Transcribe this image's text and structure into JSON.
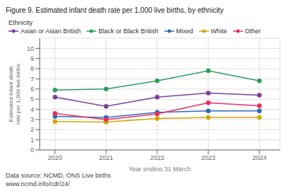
{
  "chart_data": {
    "type": "line",
    "title": "Figure 9. Estimated infant death rate per 1,000 live births, by ethnicity",
    "xlabel": "Year ending 31 March",
    "ylabel": "Estimated infant death rate per 1,000 live births",
    "legend_title": "Ethnicity",
    "x": [
      2020,
      2021,
      2022,
      2023,
      2024
    ],
    "series": [
      {
        "name": "Asian or Asian British",
        "color": "#7B3F9E",
        "marker": "circle",
        "values": [
          5.2,
          4.3,
          5.2,
          5.6,
          5.4
        ]
      },
      {
        "name": "Black or Black British",
        "color": "#2E9E5B",
        "marker": "circle",
        "values": [
          5.9,
          6.0,
          6.8,
          7.8,
          6.8
        ]
      },
      {
        "name": "Mixed",
        "color": "#2B6BB5",
        "marker": "circle",
        "values": [
          3.3,
          3.2,
          3.7,
          3.85,
          3.85
        ]
      },
      {
        "name": "White",
        "color": "#D4A800",
        "marker": "circle",
        "values": [
          2.8,
          2.75,
          3.1,
          3.2,
          3.2
        ]
      },
      {
        "name": "Other",
        "color": "#E83060",
        "marker": "circle",
        "values": [
          3.6,
          3.0,
          3.55,
          4.65,
          4.35
        ]
      }
    ],
    "xlim": [
      2019.7,
      2024.4
    ],
    "xticks": [
      2020,
      2021,
      2022,
      2023,
      2024
    ],
    "ylim": [
      0,
      11
    ],
    "yticks": [
      0,
      1,
      2,
      3,
      4,
      5,
      6,
      7,
      8,
      9,
      10
    ],
    "grid": true,
    "legend": "top",
    "footnotes": [
      "Data source: NCMD, ONS Live births",
      "www.ncmd.info/cdr/24/"
    ]
  }
}
